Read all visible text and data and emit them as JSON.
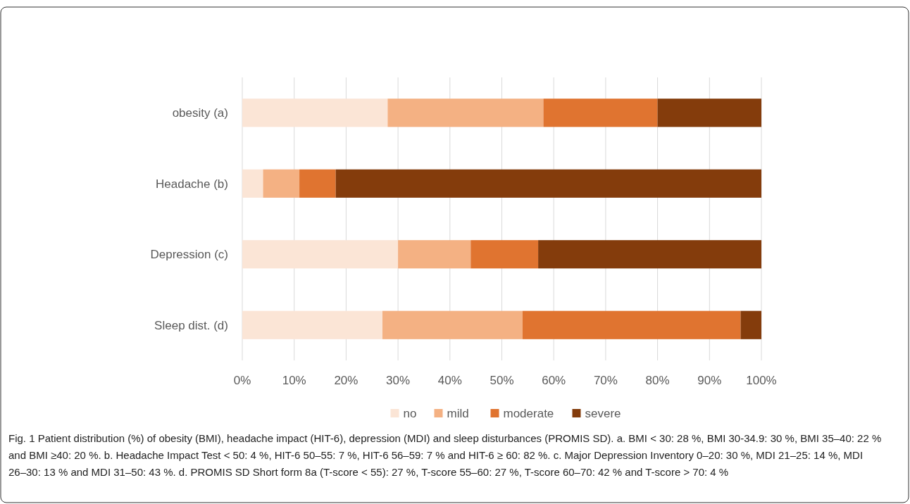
{
  "chart_data": {
    "type": "bar",
    "orientation": "horizontal",
    "stacked": true,
    "categories": [
      "obesity (a)",
      "Headache (b)",
      "Depression (c)",
      "Sleep dist. (d)"
    ],
    "series": [
      {
        "name": "no",
        "color": "#fbe5d6",
        "values": [
          28,
          4,
          30,
          27
        ]
      },
      {
        "name": "mild",
        "color": "#f4b183",
        "values": [
          30,
          7,
          14,
          27
        ]
      },
      {
        "name": "moderate",
        "color": "#e07430",
        "values": [
          22,
          7,
          13,
          42
        ]
      },
      {
        "name": "severe",
        "color": "#843c0c",
        "values": [
          20,
          82,
          43,
          4
        ]
      }
    ],
    "xlim": [
      0,
      100
    ],
    "xticks": [
      {
        "value": 0,
        "label": "0%"
      },
      {
        "value": 10,
        "label": "10%"
      },
      {
        "value": 20,
        "label": "20%"
      },
      {
        "value": 30,
        "label": "30%"
      },
      {
        "value": 40,
        "label": "40%"
      },
      {
        "value": 50,
        "label": "50%"
      },
      {
        "value": 60,
        "label": "60%"
      },
      {
        "value": 70,
        "label": "70%"
      },
      {
        "value": 80,
        "label": "80%"
      },
      {
        "value": 90,
        "label": "90%"
      },
      {
        "value": 100,
        "label": "100%"
      }
    ],
    "grid": "x",
    "legend": "bottom",
    "annotations": [
      "Fig. 1 Patient distribution (%) of obesity (BMI), headache impact (HIT-6), depression (MDI) and sleep disturbances (PROMIS SD). a. BMI < 30: 28 %, BMI 30-34.9: 30 %, BMI 35–40: 22 % and BMI ≥40: 20 %. b. Headache Impact Test < 50: 4 %, HIT-6 50–55: 7 %, HIT-6 56–59: 7 % and HIT-6 ≥ 60: 82 %. c. Major Depression Inventory 0–20: 30 %, MDI 21–25: 14 %, MDI 26–30: 13 % and MDI 31–50: 43 %. d. PROMIS SD Short form 8a (T-score < 55): 27 %, T-score 55–60: 27 %, T-score 60–70: 42 % and T-score > 70: 4 %"
    ]
  }
}
